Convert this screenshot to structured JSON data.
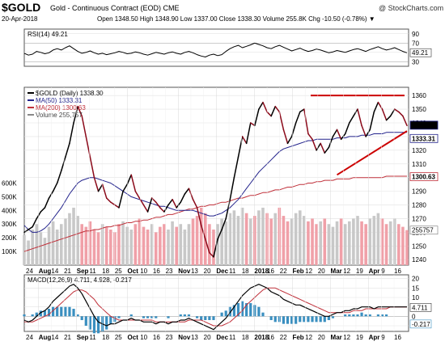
{
  "header": {
    "symbol": "$GOLD",
    "description": "Gold - Continuous Contract (EOD) CME",
    "date": "20-Apr-2018",
    "ohlc": "Open 1348.50   High 1348.90   Low 1337.00   Close 1338.30   Volume 255.8K   Chg -10.50 (-0.78%) ▼",
    "source": "@ StockCharts.com"
  },
  "colors": {
    "price": "#000000",
    "price_down": "#8b0a1a",
    "ma50": "#22228b",
    "ma200": "#c0303a",
    "volume_up": "#c8c8c8",
    "volume_down": "#f0a0a8",
    "trend": "#cc0000",
    "macd": "#000000",
    "signal": "#c0303a",
    "hist": "#3a8fc0"
  },
  "chart_data": [
    {
      "type": "line",
      "panel": "rsi",
      "legend": "RSI(14) 49.21",
      "yticks": [
        30,
        50,
        70,
        90
      ],
      "ylim": [
        20,
        100
      ],
      "current_label": "49.21",
      "x": [
        0,
        5,
        10,
        15,
        20,
        25,
        30,
        35,
        40,
        45,
        50,
        55,
        60,
        65,
        70,
        75,
        80,
        85,
        90,
        95,
        100,
        105,
        110,
        115,
        120,
        125,
        130,
        135,
        140,
        145,
        150,
        155,
        160,
        165,
        170,
        175,
        180,
        185,
        190,
        195,
        200,
        205,
        210,
        215,
        220,
        225,
        230,
        235,
        240,
        245,
        250,
        255,
        260,
        265,
        270,
        275,
        280,
        285,
        290,
        295,
        300,
        305,
        310,
        315,
        320,
        325,
        330,
        335,
        340,
        345,
        350,
        355,
        360,
        365,
        370,
        375,
        380,
        385,
        390,
        395,
        400,
        405,
        410,
        415,
        420,
        425,
        430,
        435,
        440,
        445,
        450,
        455,
        460,
        465
      ],
      "values": [
        48,
        44,
        46,
        52,
        50,
        47,
        49,
        55,
        58,
        55,
        60,
        64,
        58,
        52,
        48,
        50,
        53,
        49,
        46,
        48,
        45,
        47,
        49,
        52,
        50,
        47,
        48,
        51,
        49,
        46,
        44,
        47,
        50,
        48,
        46,
        49,
        51,
        48,
        46,
        50,
        52,
        49,
        45,
        42,
        40,
        44,
        46,
        43,
        45,
        52,
        58,
        62,
        65,
        60,
        63,
        66,
        70,
        67,
        64,
        60,
        58,
        62,
        65,
        61,
        57,
        53,
        56,
        59,
        55,
        52,
        54,
        57,
        55,
        52,
        49,
        51,
        54,
        52,
        50,
        53,
        56,
        58,
        55,
        52,
        56,
        59,
        62,
        58,
        55,
        57,
        60,
        56,
        52,
        49
      ]
    },
    {
      "type": "line",
      "panel": "price",
      "legend": [
        "$GOLD (Daily) 1338.30",
        "MA(50) 1333.31",
        "MA(200) 1300.63",
        "Volume 255,757"
      ],
      "yticks": [
        1240,
        1250,
        1260,
        1270,
        1280,
        1290,
        1300,
        1310,
        1320,
        1330,
        1340,
        1350,
        1360
      ],
      "ylim": [
        1236,
        1366
      ],
      "xticks": [
        "24",
        "Aug",
        "14",
        "21",
        "Sep",
        "11",
        "18",
        "25",
        "Oct",
        "10",
        "16",
        "23",
        "Nov",
        "13",
        "20",
        "Dec",
        "11",
        "18",
        "2018",
        "16",
        "22",
        "Feb",
        "12",
        "20",
        "Mar",
        "12",
        "19",
        "Apr",
        "9",
        "16"
      ],
      "volume_ticks": [
        "100K",
        "200K",
        "300K",
        "400K",
        "500K",
        "600K"
      ],
      "right_labels": [
        "1338.30",
        "1333.31",
        "1300.63",
        "255757"
      ],
      "x": [
        0,
        5,
        10,
        15,
        20,
        25,
        30,
        35,
        40,
        45,
        50,
        55,
        60,
        65,
        70,
        75,
        80,
        85,
        90,
        95,
        100,
        105,
        110,
        115,
        120,
        125,
        130,
        135,
        140,
        145,
        150,
        155,
        160,
        165,
        170,
        175,
        180,
        185,
        190,
        195,
        200,
        205,
        210,
        215,
        220,
        225,
        230,
        235,
        240,
        245,
        250,
        255,
        260,
        265,
        270,
        275,
        280,
        285,
        290,
        295,
        300,
        305,
        310,
        315,
        320,
        325,
        330,
        335,
        340,
        345,
        350,
        355,
        360,
        365,
        370,
        375,
        380,
        385,
        390,
        395,
        400,
        405,
        410,
        415,
        420,
        425,
        430,
        435,
        440,
        445,
        450,
        455,
        460,
        465
      ],
      "close": [
        1260,
        1262,
        1264,
        1270,
        1275,
        1278,
        1285,
        1290,
        1296,
        1305,
        1315,
        1325,
        1340,
        1352,
        1345,
        1330,
        1315,
        1300,
        1290,
        1295,
        1285,
        1282,
        1280,
        1278,
        1290,
        1295,
        1302,
        1290,
        1285,
        1280,
        1275,
        1285,
        1282,
        1278,
        1275,
        1280,
        1284,
        1278,
        1282,
        1288,
        1292,
        1284,
        1278,
        1265,
        1255,
        1245,
        1242,
        1255,
        1262,
        1270,
        1284,
        1300,
        1315,
        1330,
        1325,
        1340,
        1338,
        1350,
        1355,
        1348,
        1345,
        1352,
        1348,
        1335,
        1325,
        1330,
        1340,
        1348,
        1350,
        1332,
        1328,
        1320,
        1325,
        1318,
        1322,
        1330,
        1335,
        1328,
        1332,
        1340,
        1345,
        1350,
        1338,
        1330,
        1335,
        1348,
        1355,
        1350,
        1342,
        1345,
        1350,
        1348,
        1345,
        1338
      ],
      "ma50": [
        1265,
        1262,
        1260,
        1260,
        1261,
        1263,
        1266,
        1270,
        1274,
        1278,
        1283,
        1288,
        1292,
        1296,
        1298,
        1299,
        1300,
        1300,
        1299,
        1298,
        1297,
        1296,
        1294,
        1292,
        1290,
        1288,
        1286,
        1285,
        1284,
        1283,
        1282,
        1281,
        1280,
        1279,
        1279,
        1278,
        1277,
        1276,
        1276,
        1276,
        1276,
        1276,
        1275,
        1274,
        1273,
        1272,
        1272,
        1273,
        1274,
        1276,
        1278,
        1281,
        1284,
        1288,
        1292,
        1296,
        1300,
        1304,
        1307,
        1310,
        1313,
        1316,
        1319,
        1321,
        1322,
        1323,
        1324,
        1325,
        1326,
        1327,
        1327,
        1328,
        1328,
        1328,
        1328,
        1328,
        1329,
        1329,
        1329,
        1330,
        1330,
        1330,
        1331,
        1331,
        1331,
        1332,
        1332,
        1332,
        1333,
        1333,
        1333,
        1333,
        1333,
        1333
      ],
      "ma200": [
        1246,
        1247,
        1248,
        1249,
        1250,
        1251,
        1252,
        1253,
        1254,
        1255,
        1256,
        1257,
        1258,
        1259,
        1260,
        1261,
        1261,
        1262,
        1262,
        1263,
        1264,
        1264,
        1265,
        1265,
        1266,
        1267,
        1267,
        1268,
        1268,
        1269,
        1269,
        1270,
        1271,
        1271,
        1272,
        1273,
        1273,
        1274,
        1275,
        1276,
        1277,
        1277,
        1278,
        1279,
        1279,
        1280,
        1280,
        1281,
        1282,
        1282,
        1283,
        1284,
        1285,
        1285,
        1286,
        1287,
        1287,
        1288,
        1289,
        1289,
        1290,
        1291,
        1291,
        1292,
        1293,
        1293,
        1294,
        1295,
        1295,
        1296,
        1296,
        1297,
        1297,
        1298,
        1298,
        1298,
        1299,
        1299,
        1299,
        1299,
        1300,
        1300,
        1300,
        1300,
        1300,
        1300,
        1300,
        1300,
        1301,
        1301,
        1301,
        1301,
        1301,
        1301
      ],
      "volume": [
        220,
        180,
        260,
        300,
        240,
        200,
        280,
        320,
        260,
        300,
        340,
        380,
        420,
        360,
        300,
        280,
        320,
        260,
        240,
        300,
        280,
        260,
        240,
        300,
        320,
        280,
        260,
        300,
        340,
        280,
        260,
        300,
        240,
        280,
        300,
        260,
        320,
        280,
        300,
        260,
        300,
        340,
        360,
        420,
        380,
        300,
        260,
        300,
        340,
        320,
        380,
        400,
        360,
        420,
        380,
        340,
        360,
        400,
        420,
        380,
        340,
        380,
        420,
        360,
        320,
        340,
        380,
        400,
        360,
        320,
        340,
        300,
        320,
        340,
        300,
        280,
        320,
        340,
        300,
        320,
        340,
        360,
        320,
        300,
        340,
        360,
        380,
        340,
        300,
        320,
        340,
        300,
        280,
        256
      ],
      "trend_lines": [
        {
          "from": [
            348,
            1360
          ],
          "to": [
            462,
            1360
          ]
        },
        {
          "from": [
            380,
            1302
          ],
          "to": [
            465,
            1334
          ]
        }
      ]
    },
    {
      "type": "line",
      "panel": "macd",
      "legend": "MACD(12,26,9) 4.711, 4.928, -0.217",
      "yticks": [
        -5,
        0,
        5,
        10,
        15,
        20
      ],
      "ylim": [
        -8,
        22
      ],
      "right_labels": [
        "4.711",
        "-0.217"
      ],
      "x": [
        0,
        5,
        10,
        15,
        20,
        25,
        30,
        35,
        40,
        45,
        50,
        55,
        60,
        65,
        70,
        75,
        80,
        85,
        90,
        95,
        100,
        105,
        110,
        115,
        120,
        125,
        130,
        135,
        140,
        145,
        150,
        155,
        160,
        165,
        170,
        175,
        180,
        185,
        190,
        195,
        200,
        205,
        210,
        215,
        220,
        225,
        230,
        235,
        240,
        245,
        250,
        255,
        260,
        265,
        270,
        275,
        280,
        285,
        290,
        295,
        300,
        305,
        310,
        315,
        320,
        325,
        330,
        335,
        340,
        345,
        350,
        355,
        360,
        365,
        370,
        375,
        380,
        385,
        390,
        395,
        400,
        405,
        410,
        415,
        420,
        425,
        430,
        435,
        440,
        445,
        450,
        455,
        460,
        465
      ],
      "macd": [
        -2,
        -3,
        -2,
        0,
        2,
        3,
        5,
        8,
        10,
        12,
        14,
        16,
        17,
        15,
        12,
        8,
        4,
        0,
        -3,
        -4,
        -5,
        -4,
        -4,
        -3,
        -2,
        -2,
        -1,
        -2,
        -2,
        -3,
        -3,
        -3,
        -4,
        -3,
        -3,
        -4,
        -3,
        -3,
        -2,
        -2,
        -1,
        -2,
        -3,
        -4,
        -5,
        -6,
        -7,
        -5,
        -3,
        -1,
        2,
        5,
        8,
        11,
        13,
        15,
        16,
        17,
        16,
        15,
        13,
        12,
        11,
        9,
        8,
        7,
        6,
        6,
        5,
        4,
        3,
        2,
        1,
        0,
        0,
        1,
        2,
        2,
        3,
        3,
        4,
        4,
        5,
        5,
        5,
        4,
        5,
        5,
        5,
        5,
        5,
        5,
        5,
        5
      ],
      "signal": [
        -3,
        -3,
        -3,
        -2,
        -1,
        0,
        1,
        3,
        5,
        7,
        9,
        11,
        13,
        14,
        14,
        13,
        11,
        9,
        6,
        4,
        2,
        0,
        -1,
        -2,
        -2,
        -2,
        -2,
        -2,
        -2,
        -2,
        -2,
        -2,
        -3,
        -3,
        -3,
        -3,
        -3,
        -3,
        -3,
        -3,
        -2,
        -2,
        -2,
        -2,
        -3,
        -4,
        -5,
        -5,
        -5,
        -4,
        -3,
        -1,
        1,
        3,
        6,
        8,
        10,
        12,
        14,
        15,
        15,
        15,
        14,
        13,
        12,
        11,
        10,
        9,
        8,
        7,
        6,
        5,
        4,
        3,
        2,
        2,
        2,
        2,
        2,
        2,
        3,
        3,
        3,
        4,
        4,
        4,
        4,
        4,
        4,
        5,
        5,
        5,
        5,
        5
      ],
      "hist": [
        1,
        0,
        1,
        2,
        3,
        3,
        4,
        5,
        5,
        5,
        5,
        5,
        4,
        1,
        -2,
        -5,
        -7,
        -9,
        -9,
        -8,
        -7,
        -4,
        -3,
        -1,
        0,
        0,
        1,
        0,
        0,
        -1,
        -1,
        -1,
        -1,
        0,
        0,
        -1,
        0,
        0,
        1,
        1,
        1,
        0,
        -1,
        -2,
        -2,
        -2,
        -2,
        0,
        2,
        3,
        5,
        6,
        7,
        8,
        7,
        7,
        6,
        5,
        2,
        0,
        -2,
        -3,
        -3,
        -4,
        -4,
        -4,
        -4,
        -3,
        -3,
        -3,
        -3,
        -3,
        -3,
        -3,
        -2,
        -1,
        0,
        0,
        1,
        1,
        1,
        1,
        2,
        1,
        1,
        0,
        1,
        1,
        1,
        0,
        0,
        0,
        0,
        0
      ]
    }
  ]
}
